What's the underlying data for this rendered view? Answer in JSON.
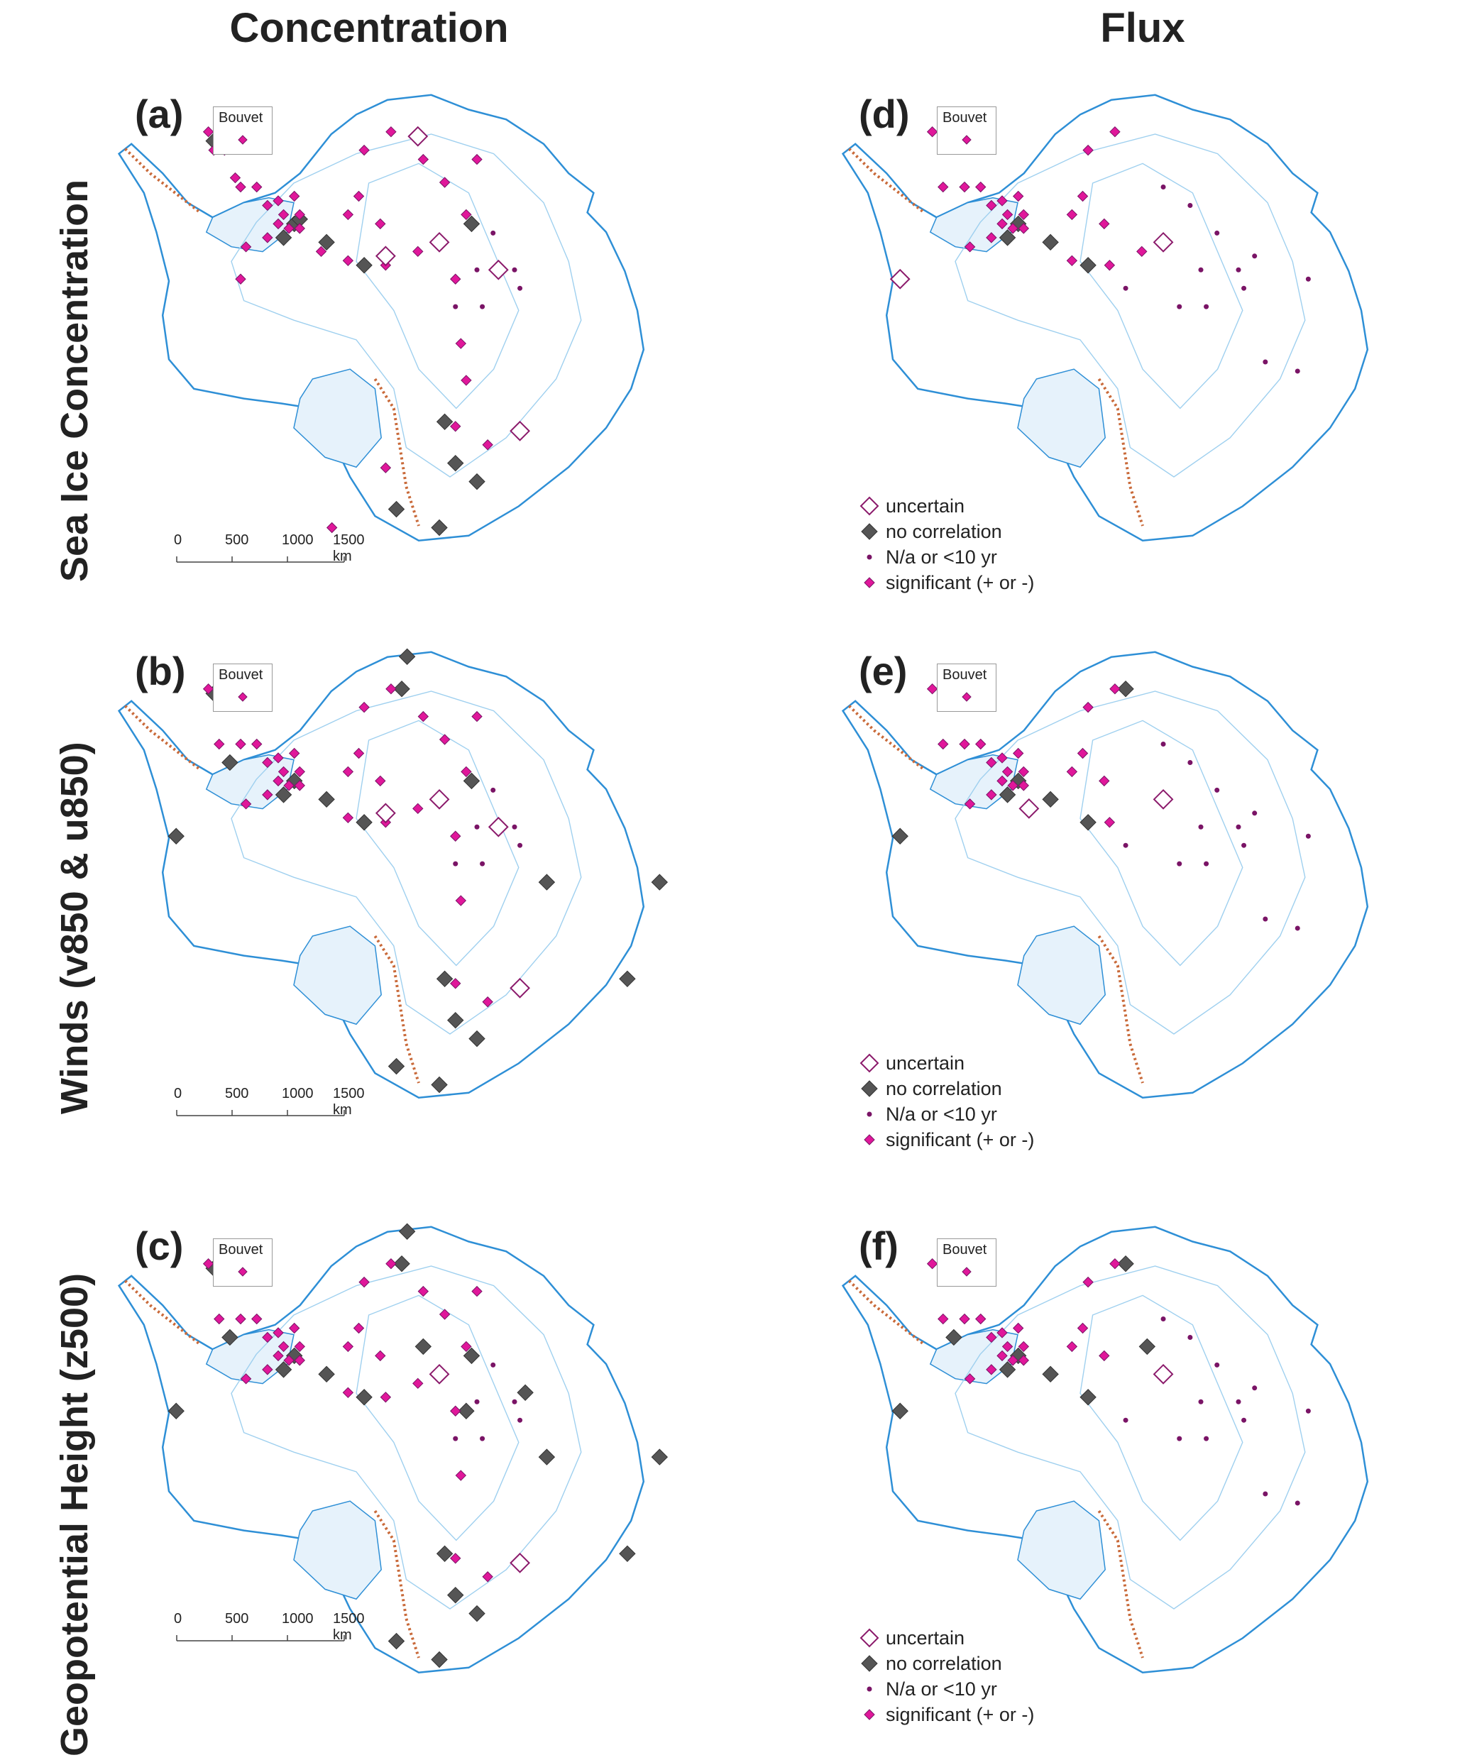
{
  "columns": [
    "Concentration",
    "Flux"
  ],
  "rows": [
    "Sea Ice Concentration",
    "Winds (v850 & u850)",
    "Geopotential Height (z500)"
  ],
  "panels": [
    {
      "label": "(a)",
      "inset": "Bouvet"
    },
    {
      "label": "(b)",
      "inset": "Bouvet"
    },
    {
      "label": "(c)",
      "inset": "Bouvet"
    },
    {
      "label": "(d)",
      "inset": "Bouvet"
    },
    {
      "label": "(e)",
      "inset": "Bouvet"
    },
    {
      "label": "(f)",
      "inset": "Bouvet"
    }
  ],
  "legend": {
    "uncertain": "uncertain",
    "no_correlation": "no correlation",
    "na": "N/a or <10 yr",
    "significant": "significant (+ or -)"
  },
  "scalebar": {
    "t0": "0",
    "t1": "500",
    "t2": "1000",
    "t3": "1500 km"
  },
  "colors": {
    "significant": "#e0179a",
    "no_correlation": "#555555",
    "na": "#7a1466",
    "uncertain": "#8b1a6b",
    "coast": "#2e8fd6",
    "ice_shelf": "#e6f2fb",
    "contour": "#9fd0ef",
    "mountains": "#c96a3a"
  },
  "markers": {
    "a": {
      "sig": [
        [
          12,
          8
        ],
        [
          17,
          11
        ],
        [
          15,
          12
        ],
        [
          13,
          12
        ],
        [
          17,
          18
        ],
        [
          18,
          20
        ],
        [
          21,
          20
        ],
        [
          23,
          24
        ],
        [
          25,
          23
        ],
        [
          28,
          22
        ],
        [
          26,
          26
        ],
        [
          29,
          26
        ],
        [
          27,
          29
        ],
        [
          25,
          28
        ],
        [
          29,
          29
        ],
        [
          23,
          31
        ],
        [
          41,
          12
        ],
        [
          46,
          8
        ],
        [
          40,
          22
        ],
        [
          38,
          26
        ],
        [
          44,
          28
        ],
        [
          52,
          14
        ],
        [
          56,
          19
        ],
        [
          62,
          14
        ],
        [
          60,
          26
        ],
        [
          19,
          33
        ],
        [
          18,
          40
        ],
        [
          33,
          34
        ],
        [
          45,
          37
        ],
        [
          51,
          34
        ],
        [
          38,
          36
        ],
        [
          58,
          40
        ],
        [
          59,
          54
        ],
        [
          60,
          62
        ],
        [
          58,
          72
        ],
        [
          64,
          76
        ],
        [
          45,
          81
        ],
        [
          35,
          94
        ]
      ],
      "nc": [
        [
          13,
          10
        ],
        [
          28,
          28
        ],
        [
          29,
          27
        ],
        [
          26,
          31
        ],
        [
          34,
          32
        ],
        [
          61,
          28
        ],
        [
          41,
          37
        ],
        [
          56,
          71
        ],
        [
          58,
          80
        ],
        [
          62,
          84
        ],
        [
          55,
          94
        ],
        [
          47,
          90
        ]
      ],
      "na": [
        [
          65,
          30
        ],
        [
          62,
          38
        ],
        [
          69,
          38
        ],
        [
          63,
          46
        ],
        [
          70,
          42
        ],
        [
          58,
          46
        ]
      ],
      "unc": [
        [
          55,
          32
        ],
        [
          45,
          35
        ],
        [
          66,
          38
        ],
        [
          70,
          73
        ],
        [
          51,
          9
        ]
      ]
    },
    "b": {
      "sig": [
        [
          12,
          8
        ],
        [
          17,
          11
        ],
        [
          14,
          20
        ],
        [
          18,
          20
        ],
        [
          21,
          20
        ],
        [
          23,
          24
        ],
        [
          25,
          23
        ],
        [
          28,
          22
        ],
        [
          26,
          26
        ],
        [
          29,
          26
        ],
        [
          27,
          29
        ],
        [
          25,
          28
        ],
        [
          29,
          29
        ],
        [
          23,
          31
        ],
        [
          41,
          12
        ],
        [
          46,
          8
        ],
        [
          40,
          22
        ],
        [
          38,
          26
        ],
        [
          44,
          28
        ],
        [
          52,
          14
        ],
        [
          56,
          19
        ],
        [
          62,
          14
        ],
        [
          60,
          26
        ],
        [
          19,
          33
        ],
        [
          45,
          37
        ],
        [
          51,
          34
        ],
        [
          38,
          36
        ],
        [
          58,
          40
        ],
        [
          59,
          54
        ],
        [
          58,
          72
        ],
        [
          64,
          76
        ]
      ],
      "nc": [
        [
          13,
          9
        ],
        [
          16,
          24
        ],
        [
          6,
          40
        ],
        [
          28,
          28
        ],
        [
          26,
          31
        ],
        [
          34,
          32
        ],
        [
          61,
          28
        ],
        [
          41,
          37
        ],
        [
          56,
          71
        ],
        [
          58,
          80
        ],
        [
          62,
          84
        ],
        [
          55,
          94
        ],
        [
          47,
          90
        ],
        [
          75,
          50
        ],
        [
          96,
          50
        ],
        [
          90,
          71
        ],
        [
          48,
          8
        ],
        [
          49,
          1
        ]
      ],
      "na": [
        [
          65,
          30
        ],
        [
          62,
          38
        ],
        [
          69,
          38
        ],
        [
          63,
          46
        ],
        [
          70,
          42
        ],
        [
          58,
          46
        ]
      ],
      "unc": [
        [
          55,
          32
        ],
        [
          45,
          35
        ],
        [
          66,
          38
        ],
        [
          70,
          73
        ]
      ]
    },
    "c": {
      "sig": [
        [
          12,
          8
        ],
        [
          17,
          11
        ],
        [
          14,
          20
        ],
        [
          18,
          20
        ],
        [
          21,
          20
        ],
        [
          23,
          24
        ],
        [
          25,
          23
        ],
        [
          28,
          22
        ],
        [
          26,
          26
        ],
        [
          29,
          26
        ],
        [
          27,
          29
        ],
        [
          25,
          28
        ],
        [
          29,
          29
        ],
        [
          23,
          31
        ],
        [
          41,
          12
        ],
        [
          46,
          8
        ],
        [
          40,
          22
        ],
        [
          38,
          26
        ],
        [
          44,
          28
        ],
        [
          52,
          14
        ],
        [
          56,
          19
        ],
        [
          62,
          14
        ],
        [
          60,
          26
        ],
        [
          19,
          33
        ],
        [
          45,
          37
        ],
        [
          51,
          34
        ],
        [
          38,
          36
        ],
        [
          58,
          40
        ],
        [
          59,
          54
        ],
        [
          58,
          72
        ],
        [
          64,
          76
        ]
      ],
      "nc": [
        [
          13,
          9
        ],
        [
          16,
          24
        ],
        [
          6,
          40
        ],
        [
          28,
          28
        ],
        [
          26,
          31
        ],
        [
          34,
          32
        ],
        [
          61,
          28
        ],
        [
          41,
          37
        ],
        [
          56,
          71
        ],
        [
          58,
          80
        ],
        [
          62,
          84
        ],
        [
          55,
          94
        ],
        [
          47,
          90
        ],
        [
          75,
          50
        ],
        [
          96,
          50
        ],
        [
          90,
          71
        ],
        [
          48,
          8
        ],
        [
          49,
          1
        ],
        [
          52,
          26
        ],
        [
          60,
          40
        ],
        [
          71,
          36
        ]
      ],
      "na": [
        [
          65,
          30
        ],
        [
          62,
          38
        ],
        [
          69,
          38
        ],
        [
          63,
          46
        ],
        [
          70,
          42
        ],
        [
          58,
          46
        ]
      ],
      "unc": [
        [
          55,
          32
        ],
        [
          70,
          73
        ]
      ]
    },
    "d": {
      "sig": [
        [
          12,
          8
        ],
        [
          17,
          11
        ],
        [
          14,
          20
        ],
        [
          18,
          20
        ],
        [
          21,
          20
        ],
        [
          23,
          24
        ],
        [
          25,
          23
        ],
        [
          28,
          22
        ],
        [
          26,
          26
        ],
        [
          29,
          26
        ],
        [
          27,
          29
        ],
        [
          25,
          28
        ],
        [
          29,
          29
        ],
        [
          23,
          31
        ],
        [
          41,
          12
        ],
        [
          46,
          8
        ],
        [
          40,
          22
        ],
        [
          38,
          26
        ],
        [
          44,
          28
        ],
        [
          19,
          33
        ],
        [
          45,
          37
        ],
        [
          51,
          34
        ],
        [
          38,
          36
        ]
      ],
      "nc": [
        [
          28,
          28
        ],
        [
          26,
          31
        ],
        [
          34,
          32
        ],
        [
          41,
          37
        ]
      ],
      "na": [
        [
          65,
          30
        ],
        [
          62,
          38
        ],
        [
          69,
          38
        ],
        [
          63,
          46
        ],
        [
          70,
          42
        ],
        [
          58,
          46
        ],
        [
          55,
          20
        ],
        [
          60,
          24
        ],
        [
          48,
          42
        ],
        [
          74,
          58
        ],
        [
          80,
          60
        ],
        [
          72,
          35
        ],
        [
          82,
          40
        ]
      ],
      "unc": [
        [
          55,
          32
        ],
        [
          6,
          40
        ]
      ]
    },
    "e": {
      "sig": [
        [
          12,
          8
        ],
        [
          17,
          11
        ],
        [
          14,
          20
        ],
        [
          18,
          20
        ],
        [
          21,
          20
        ],
        [
          23,
          24
        ],
        [
          25,
          23
        ],
        [
          28,
          22
        ],
        [
          26,
          26
        ],
        [
          29,
          26
        ],
        [
          27,
          29
        ],
        [
          25,
          28
        ],
        [
          29,
          29
        ],
        [
          23,
          31
        ],
        [
          41,
          12
        ],
        [
          46,
          8
        ],
        [
          40,
          22
        ],
        [
          38,
          26
        ],
        [
          44,
          28
        ],
        [
          19,
          33
        ],
        [
          45,
          37
        ]
      ],
      "nc": [
        [
          28,
          28
        ],
        [
          26,
          31
        ],
        [
          34,
          32
        ],
        [
          41,
          37
        ],
        [
          6,
          40
        ],
        [
          48,
          8
        ]
      ],
      "na": [
        [
          65,
          30
        ],
        [
          62,
          38
        ],
        [
          69,
          38
        ],
        [
          63,
          46
        ],
        [
          70,
          42
        ],
        [
          58,
          46
        ],
        [
          55,
          20
        ],
        [
          60,
          24
        ],
        [
          48,
          42
        ],
        [
          74,
          58
        ],
        [
          80,
          60
        ],
        [
          72,
          35
        ],
        [
          82,
          40
        ]
      ],
      "unc": [
        [
          55,
          32
        ],
        [
          30,
          34
        ]
      ]
    },
    "f": {
      "sig": [
        [
          12,
          8
        ],
        [
          17,
          11
        ],
        [
          14,
          20
        ],
        [
          18,
          20
        ],
        [
          21,
          20
        ],
        [
          23,
          24
        ],
        [
          25,
          23
        ],
        [
          28,
          22
        ],
        [
          26,
          26
        ],
        [
          29,
          26
        ],
        [
          27,
          29
        ],
        [
          25,
          28
        ],
        [
          29,
          29
        ],
        [
          23,
          31
        ],
        [
          41,
          12
        ],
        [
          46,
          8
        ],
        [
          40,
          22
        ],
        [
          38,
          26
        ],
        [
          44,
          28
        ],
        [
          19,
          33
        ]
      ],
      "nc": [
        [
          28,
          28
        ],
        [
          26,
          31
        ],
        [
          34,
          32
        ],
        [
          41,
          37
        ],
        [
          6,
          40
        ],
        [
          48,
          8
        ],
        [
          52,
          26
        ],
        [
          16,
          24
        ]
      ],
      "na": [
        [
          65,
          30
        ],
        [
          62,
          38
        ],
        [
          69,
          38
        ],
        [
          63,
          46
        ],
        [
          70,
          42
        ],
        [
          58,
          46
        ],
        [
          55,
          20
        ],
        [
          60,
          24
        ],
        [
          48,
          42
        ],
        [
          74,
          58
        ],
        [
          80,
          60
        ],
        [
          72,
          35
        ],
        [
          82,
          40
        ]
      ],
      "unc": [
        [
          55,
          32
        ]
      ]
    }
  }
}
